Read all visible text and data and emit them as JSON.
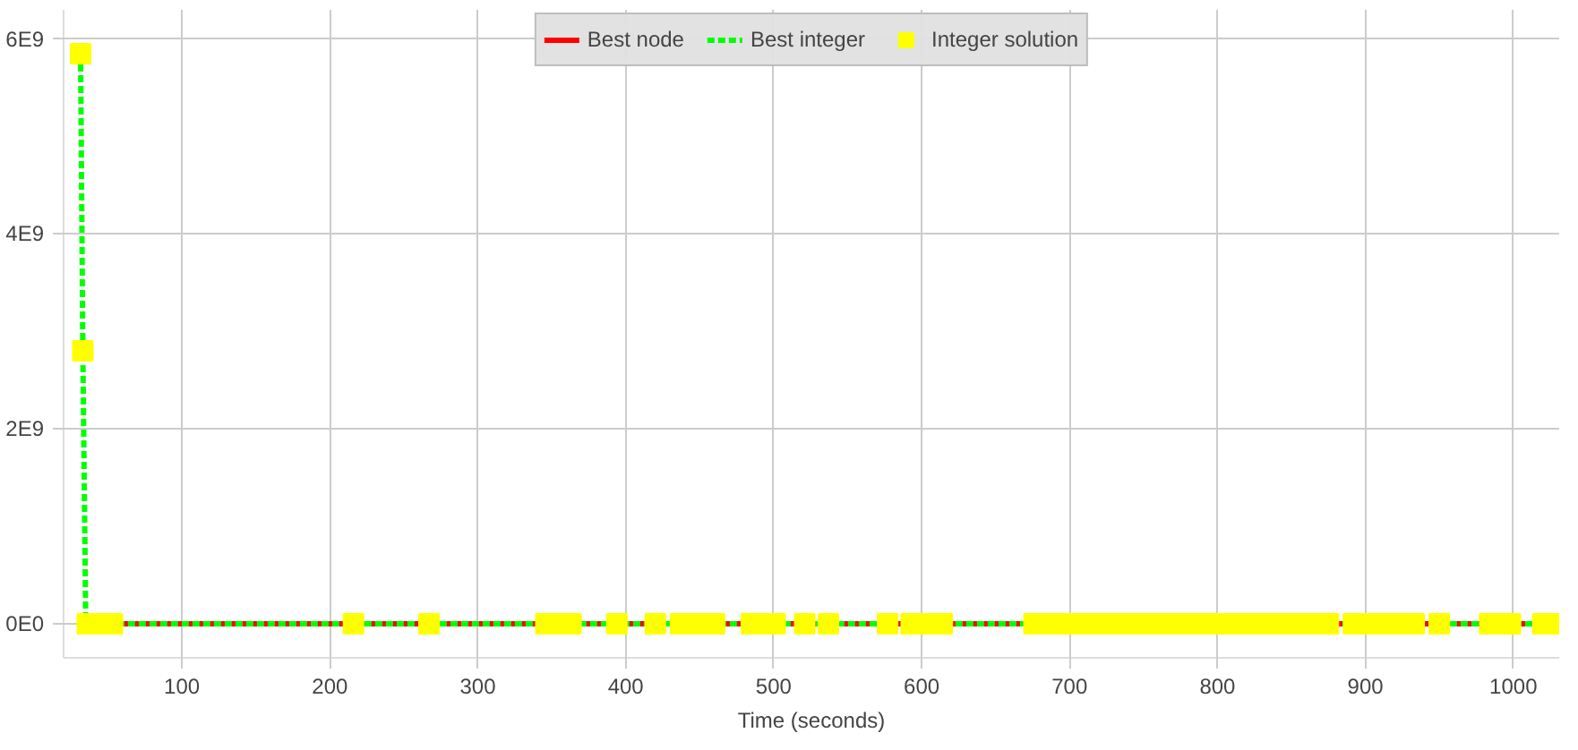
{
  "chart_data": {
    "type": "line",
    "xlabel": "Time (seconds)",
    "xlim": [
      20,
      1031
    ],
    "ylim": [
      -350000000,
      6300000000
    ],
    "xticks": [
      100,
      200,
      300,
      400,
      500,
      600,
      700,
      800,
      900,
      1000
    ],
    "yticks": [
      {
        "value": 0,
        "label": "0E0"
      },
      {
        "value": 2000000000,
        "label": "2E9"
      },
      {
        "value": 4000000000,
        "label": "4E9"
      },
      {
        "value": 6000000000,
        "label": "6E9"
      }
    ],
    "grid": true,
    "legend": "top",
    "series": [
      {
        "name": "Best node",
        "type": "line",
        "color": "#ff0000",
        "line_style": "solid",
        "marker": "none",
        "x": [
          35,
          1031
        ],
        "values": [
          0,
          0
        ]
      },
      {
        "name": "Best integer",
        "type": "line",
        "color": "#00ff00",
        "line_style": "dashed",
        "marker": "none",
        "x": [
          31.5,
          33,
          35,
          1031
        ],
        "values": [
          5850000000,
          2800000000,
          0,
          0
        ]
      },
      {
        "name": "Integer solution",
        "type": "scatter",
        "color": "#ffff00",
        "marker": "square",
        "x": [
          31.5,
          33,
          36,
          45,
          53,
          216,
          267,
          346,
          355,
          363,
          394,
          420,
          437,
          446,
          460,
          485,
          493,
          501,
          521,
          537,
          577,
          593,
          602,
          614,
          676,
          685,
          694,
          703,
          712,
          721,
          730,
          739,
          748,
          757,
          766,
          775,
          784,
          793,
          802,
          811,
          820,
          829,
          838,
          847,
          856,
          865,
          875,
          892,
          901,
          910,
          919,
          933,
          950,
          984,
          998,
          1020,
          1027
        ],
        "values": [
          5850000000,
          2800000000,
          0,
          0,
          0,
          0,
          0,
          0,
          0,
          0,
          0,
          0,
          0,
          0,
          0,
          0,
          0,
          0,
          0,
          0,
          0,
          0,
          0,
          0,
          0,
          0,
          0,
          0,
          0,
          0,
          0,
          0,
          0,
          0,
          0,
          0,
          0,
          0,
          0,
          0,
          0,
          0,
          0,
          0,
          0,
          0,
          0,
          0,
          0,
          0,
          0,
          0,
          0,
          0,
          0,
          0,
          0
        ]
      }
    ]
  }
}
